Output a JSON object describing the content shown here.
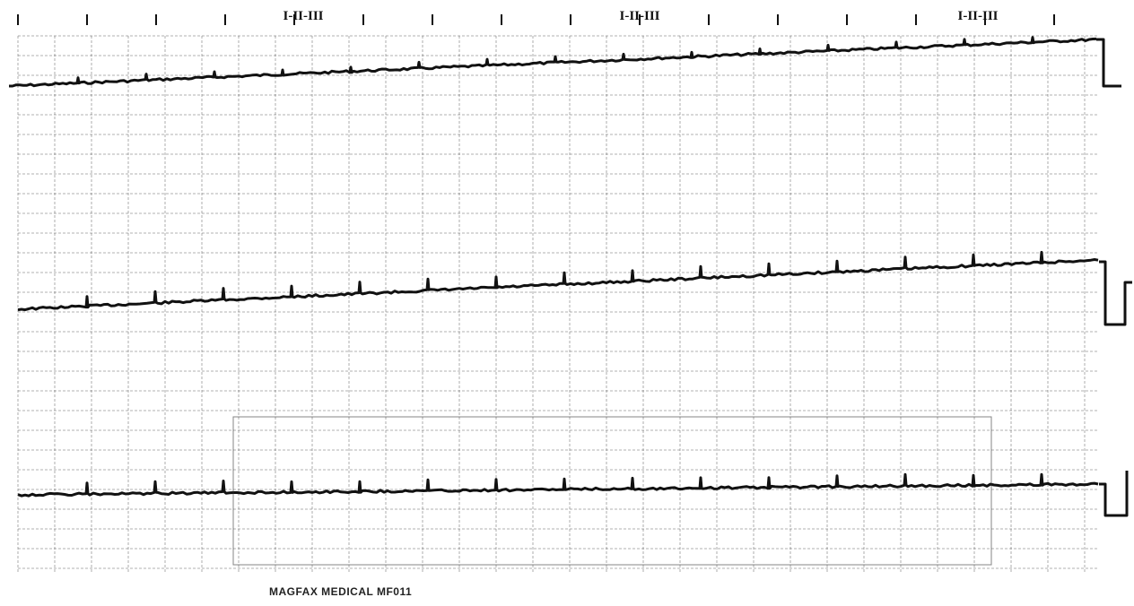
{
  "lead_markers": [
    "I-II-III",
    "I-II-III",
    "I-II-III"
  ],
  "footer": "MAGFAX MEDICAL MF011"
}
